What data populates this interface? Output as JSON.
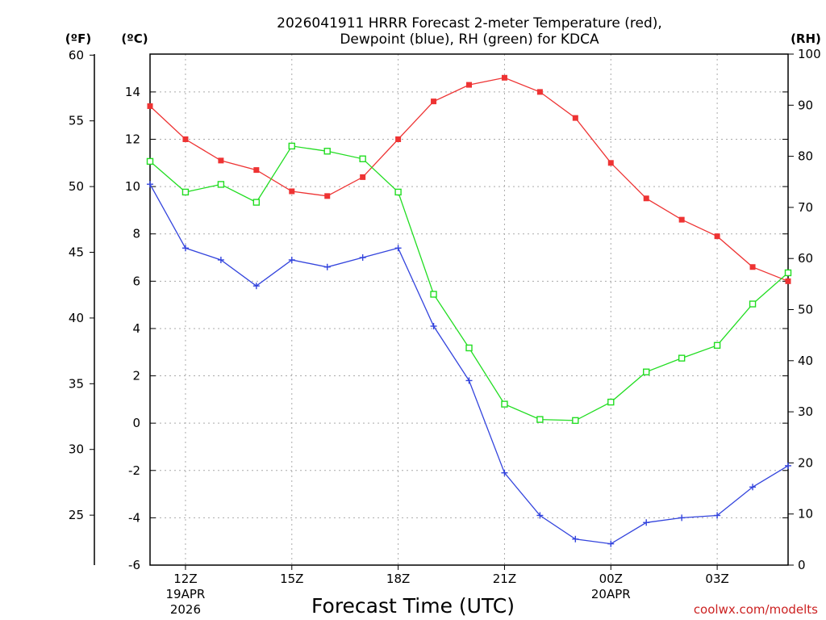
{
  "chart_data": {
    "type": "line",
    "title_lines": [
      "2026041911 HRRR Forecast 2-meter Temperature (red),",
      "Dewpoint (blue), RH (green) for KDCA"
    ],
    "xlabel": "Forecast Time (UTC)",
    "credit": "coolwx.com/modelts",
    "unit_labels": {
      "fahrenheit": "(ºF)",
      "celsius": "(ºC)",
      "rh": "(RH)"
    },
    "x_range_hours": [
      11,
      29
    ],
    "x_ticks": [
      {
        "hour": 12,
        "label": "12Z",
        "sub1": "19APR",
        "sub2": "2026"
      },
      {
        "hour": 15,
        "label": "15Z",
        "sub1": "",
        "sub2": ""
      },
      {
        "hour": 18,
        "label": "18Z",
        "sub1": "",
        "sub2": ""
      },
      {
        "hour": 21,
        "label": "21Z",
        "sub1": "",
        "sub2": ""
      },
      {
        "hour": 24,
        "label": "00Z",
        "sub1": "20APR",
        "sub2": ""
      },
      {
        "hour": 27,
        "label": "03Z",
        "sub1": "",
        "sub2": ""
      }
    ],
    "y_celsius": {
      "range": [
        -6,
        15.6
      ],
      "ticks": [
        -6,
        -4,
        -2,
        0,
        2,
        4,
        6,
        8,
        10,
        12,
        14
      ]
    },
    "y_fahrenheit": {
      "ticks": [
        25,
        30,
        35,
        40,
        45,
        50,
        55,
        60
      ]
    },
    "y_rh": {
      "range": [
        0,
        100
      ],
      "ticks": [
        0,
        10,
        20,
        30,
        40,
        50,
        60,
        70,
        80,
        90,
        100
      ]
    },
    "x": [
      11,
      12,
      13,
      14,
      15,
      16,
      17,
      18,
      19,
      20,
      21,
      22,
      23,
      24,
      25,
      26,
      27,
      28,
      29
    ],
    "series": [
      {
        "name": "2-meter Temperature",
        "axis": "celsius",
        "color": "#ee3333",
        "marker": "filled-square",
        "values": [
          13.4,
          12.0,
          11.1,
          10.7,
          9.8,
          9.6,
          10.4,
          12.0,
          13.6,
          14.3,
          14.6,
          14.0,
          12.9,
          11.0,
          9.5,
          8.6,
          7.9,
          6.6,
          6.0
        ]
      },
      {
        "name": "Dewpoint",
        "axis": "celsius",
        "color": "#3344dd",
        "marker": "plus",
        "values": [
          10.1,
          7.4,
          6.9,
          5.8,
          6.9,
          6.6,
          7.0,
          7.4,
          4.1,
          1.8,
          -2.1,
          -3.9,
          -4.9,
          -5.1,
          -4.2,
          -4.0,
          -3.9,
          -2.7,
          -1.8
        ]
      },
      {
        "name": "RH",
        "axis": "rh",
        "color": "#22dd22",
        "marker": "open-square",
        "values": [
          79,
          73,
          74.5,
          71,
          82,
          81,
          79.5,
          73,
          53,
          42.5,
          31.5,
          28.5,
          28.3,
          31.9,
          37.8,
          40.5,
          43,
          51.1,
          57.2
        ]
      }
    ]
  }
}
